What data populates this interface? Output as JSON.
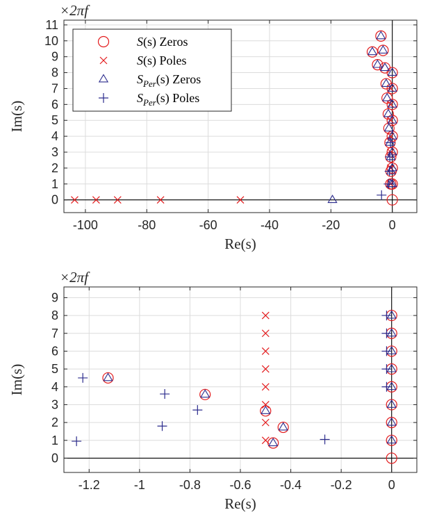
{
  "chart_data": [
    {
      "type": "scatter",
      "multiplier": "×2πf",
      "xlabel": "Re(s)",
      "ylabel": "Im(s)",
      "xlim": [
        -107,
        8
      ],
      "ylim": [
        -0.8,
        11.3
      ],
      "xticks": [
        -100,
        -80,
        -60,
        -40,
        -20,
        0
      ],
      "yticks": [
        0,
        1,
        2,
        3,
        4,
        5,
        6,
        7,
        8,
        9,
        10,
        11
      ],
      "grid": true,
      "legend": {
        "position": "top-left",
        "entries": [
          {
            "series": 0,
            "main": "S",
            "sub": "",
            "rest": "(s) Zeros"
          },
          {
            "series": 1,
            "main": "S",
            "sub": "",
            "rest": "(s) Poles"
          },
          {
            "series": 2,
            "main": "S",
            "sub": "Per",
            "rest": "(s) Zeros"
          },
          {
            "series": 3,
            "main": "S",
            "sub": "Per",
            "rest": "(s) Poles"
          }
        ]
      },
      "series": [
        {
          "marker": "circle",
          "color": "#e31a1c",
          "x": [
            0,
            0,
            0,
            0,
            0,
            0,
            0,
            0,
            0,
            -0.5,
            -0.4,
            -0.5,
            -0.75,
            -1.1,
            -1.3,
            -1.7,
            -2,
            -2.4,
            -3,
            -3.7,
            -4.8,
            -6.5
          ],
          "y": [
            0,
            1,
            2,
            3,
            4,
            5,
            6,
            7,
            8,
            1,
            1.8,
            2.7,
            3.6,
            4.5,
            5.4,
            6.4,
            7.3,
            8.3,
            9.4,
            10.3,
            8.5,
            9.3
          ]
        },
        {
          "marker": "x",
          "color": "#e31a1c",
          "x": [
            -103.5,
            -96.5,
            -89.5,
            -75.5,
            -49.5,
            -0.5,
            -0.5,
            -0.5,
            -0.5,
            -0.5,
            -0.5,
            -0.5
          ],
          "y": [
            0,
            0,
            0,
            0,
            0,
            1,
            2,
            3,
            4,
            5,
            6,
            7
          ]
        },
        {
          "marker": "triangle",
          "color": "#2b2b8c",
          "x": [
            -19.5,
            0,
            0,
            0,
            0,
            0,
            0,
            0,
            0,
            -0.5,
            -0.4,
            -0.5,
            -0.75,
            -1.1,
            -1.3,
            -1.7,
            -2,
            -2.4,
            -3,
            -3.7,
            -4.8,
            -6.5
          ],
          "y": [
            0,
            1,
            2,
            3,
            4,
            5,
            6,
            7,
            8,
            1,
            1.8,
            2.7,
            3.6,
            4.5,
            5.4,
            6.4,
            7.3,
            8.3,
            9.4,
            10.3,
            8.5,
            9.3
          ]
        },
        {
          "marker": "plus",
          "color": "#2b2b8c",
          "x": [
            -3.5,
            -1.2,
            -0.9,
            -0.8,
            -0.6
          ],
          "y": [
            0.3,
            1,
            1.8,
            2.7,
            3.6
          ]
        }
      ]
    },
    {
      "type": "scatter",
      "multiplier": "×2πf",
      "xlabel": "Re(s)",
      "ylabel": "Im(s)",
      "xlim": [
        -1.3,
        0.1
      ],
      "ylim": [
        -0.8,
        9.6
      ],
      "xticks": [
        -1.2,
        -1,
        -0.8,
        -0.6,
        -0.4,
        -0.2,
        0
      ],
      "xticklabels": [
        "-1.2",
        "-1",
        "-0.8",
        "-0.6",
        "-0.4",
        "-0.2",
        "0"
      ],
      "yticks": [
        0,
        1,
        2,
        3,
        4,
        5,
        6,
        7,
        8,
        9
      ],
      "grid": true,
      "series": [
        {
          "marker": "circle",
          "color": "#e31a1c",
          "x": [
            -1.125,
            -0.74,
            -0.5,
            -0.43,
            -0.47,
            0,
            0,
            0,
            0,
            0,
            0,
            0,
            0,
            0
          ],
          "y": [
            4.5,
            3.57,
            2.65,
            1.73,
            0.85,
            0,
            1,
            2,
            3,
            4,
            5,
            6,
            7,
            8
          ]
        },
        {
          "marker": "x",
          "color": "#e31a1c",
          "x": [
            -0.5,
            -0.5,
            -0.5,
            -0.5,
            -0.5,
            -0.5,
            -0.5,
            -0.5
          ],
          "y": [
            1,
            2,
            3,
            4,
            5,
            6,
            7,
            8
          ]
        },
        {
          "marker": "triangle",
          "color": "#2b2b8c",
          "x": [
            -1.125,
            -0.74,
            -0.5,
            -0.43,
            -0.47,
            0,
            0,
            0,
            0,
            0,
            0,
            0,
            0
          ],
          "y": [
            4.5,
            3.57,
            2.65,
            1.73,
            0.85,
            1,
            2,
            3,
            4,
            5,
            6,
            7,
            8
          ]
        },
        {
          "marker": "plus",
          "color": "#2b2b8c",
          "x": [
            -1.25,
            -1.225,
            -0.9,
            -0.91,
            -0.77,
            -0.265,
            -0.02,
            -0.02,
            -0.02,
            -0.02,
            -0.02
          ],
          "y": [
            0.95,
            4.5,
            3.6,
            1.8,
            2.7,
            1.05,
            4,
            5,
            6,
            7,
            8
          ]
        }
      ]
    }
  ]
}
